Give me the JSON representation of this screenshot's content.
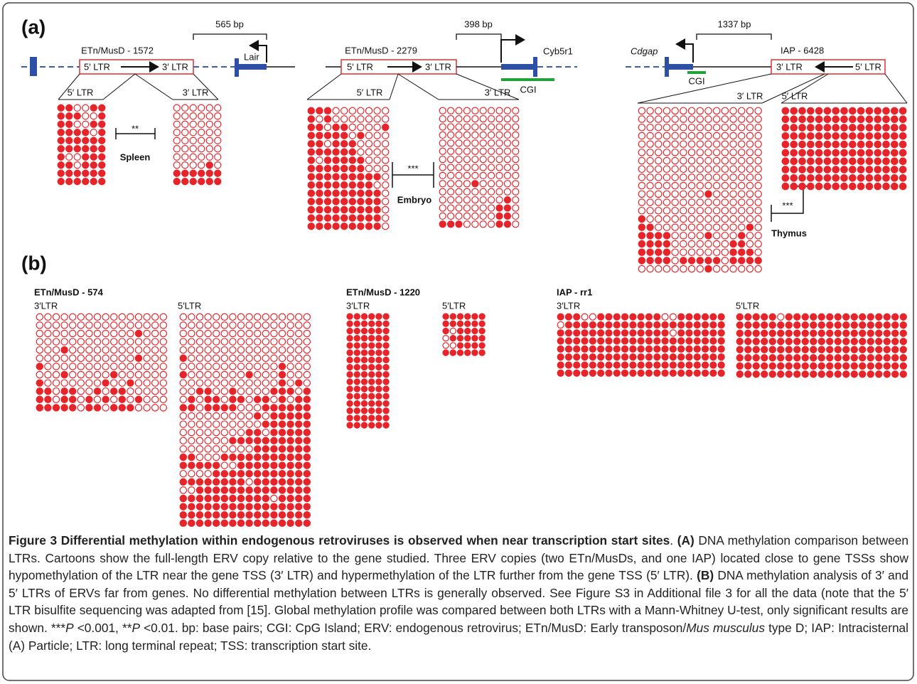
{
  "panel_labels": [
    "(a)",
    "(b)"
  ],
  "diagrams": [
    {
      "title": "ETn/MusD - 1572",
      "distance": "565 bp",
      "ltr_left": "5′ LTR",
      "ltr_right": "3′ LTR",
      "gene": "Lair",
      "grid_left": "5′ LTR",
      "grid_right": "3′ LTR",
      "significance": "**",
      "tissue": "Spleen"
    },
    {
      "title": "ETn/MusD - 2279",
      "distance": "398 bp",
      "ltr_left": "5′ LTR",
      "ltr_right": "3′ LTR",
      "gene": "Cyb5r1",
      "cgi": "CGI",
      "grid_left": "5′ LTR",
      "grid_right": "3′ LTR",
      "significance": "***",
      "tissue": "Embryo"
    },
    {
      "title": "IAP - 6428",
      "distance": "1337 bp",
      "ltr_left": "3′ LTR",
      "ltr_right": "5′ LTR",
      "gene": "Cdgap",
      "cgi": "CGI",
      "grid_left": "3′ LTR",
      "grid_right": "5′ LTR",
      "significance": "***",
      "tissue": "Thymus"
    }
  ],
  "far_elements": [
    {
      "title": "ETn/MusD -  574",
      "grid_left": "3′LTR",
      "grid_right": "5′LTR"
    },
    {
      "title": "ETn/MusD - 1220",
      "grid_left": "3′LTR",
      "grid_right": "5′LTR"
    },
    {
      "title": "IAP - rr1",
      "grid_left": "3′LTR",
      "grid_right": "5′LTR"
    }
  ],
  "grids": [
    {
      "rows": [
        "110011",
        "111001",
        "110011",
        "111101",
        "111111",
        "111111",
        "100111",
        "110111",
        "111111",
        "111111"
      ]
    },
    {
      "rows": [
        "000000",
        "000000",
        "000000",
        "000000",
        "000000",
        "000000",
        "000000",
        "000010",
        "111111",
        "111111"
      ]
    },
    {
      "rows": [
        "1110000000",
        "1010000000",
        "1101100001",
        "1111101000",
        "1101110000",
        "1111110000",
        "1011111000",
        "1111111000",
        "1111111110",
        "1111111100",
        "1111111110",
        "1111111110",
        "1111111110",
        "1111111110",
        "1111111110"
      ]
    },
    {
      "rows": [
        "0000000000",
        "0000000000",
        "0000000000",
        "0000000000",
        "0000000000",
        "0000000000",
        "0000000000",
        "0000000000",
        "0000000000",
        "0000100000",
        "0000000000",
        "0000000010",
        "0000000110",
        "0000000110",
        "1110000110"
      ]
    },
    {
      "rows": [
        "000000000000000",
        "000000000000000",
        "000000000000000",
        "000000000000000",
        "000000000000000",
        "000000000000000",
        "000000000000000",
        "000000000000000",
        "000000000000000",
        "000000000000000",
        "000000001000000",
        "000000000000000",
        "000000000000000",
        "100000000000000",
        "110000000000010",
        "111100001000100",
        "111100000001100",
        "111100000001110",
        "111101111101111",
        "000000001000000"
      ]
    },
    {
      "rows": [
        "111111111111111",
        "111111111111111",
        "111111111111111",
        "111111111111111",
        "111111111111111",
        "111111111111111",
        "111111111111111",
        "111111111111111",
        "111111111111111",
        "111111111111111"
      ]
    },
    {
      "rows": [
        "0000000000000000",
        "0000000000000000",
        "0000000000001000",
        "0000000000000000",
        "0001000000000000",
        "0000000000001000",
        "1000000000000000",
        "0001000001000000",
        "1000000010010000",
        "1101100101100000",
        "1101101010101000",
        "1111101101110000"
      ]
    },
    {
      "rows": [
        "0000000000000000",
        "0000000000000000",
        "0000000000000000",
        "0000000000000000",
        "0000000000000000",
        "1000000000000000",
        "0000000000001000",
        "1000000010001000",
        "0000000000001010",
        "0011001000011101",
        "0101101101101011",
        "1101111000111111",
        "0000000001011111",
        "0000000000111111",
        "0000000011011111",
        "0000001111111111",
        "0000000001111111",
        "1100011111111111",
        "1111100111111111",
        "0000111111111111",
        "1111111101111111",
        "0011111111111111",
        "1111111111101111",
        "1111111111111111",
        "1111111111111111",
        "1111111111111111"
      ]
    },
    {
      "rows": [
        "111111",
        "111111",
        "111111",
        "111111",
        "111111",
        "111111",
        "111111",
        "111111",
        "111111",
        "111111",
        "111111",
        "111111",
        "111111",
        "111111",
        "111111",
        "111111"
      ]
    },
    {
      "rows": [
        "111111",
        "111111",
        "101111",
        "011111",
        "001111",
        "111111"
      ]
    },
    {
      "rows": [
        "111001111111100111111",
        "011111111111111111111",
        "111111111111110111111",
        "111111111111111111111",
        "111111111111111111111",
        "111111111111111111111",
        "111111111111111111111",
        "111111111111111111111"
      ]
    },
    {
      "rows": [
        "111110111111111111111",
        "111111111111111111111",
        "111111111111111111111",
        "111111111111111111111",
        "111111111111111111111",
        "111111111111111111111",
        "111111111111111111111",
        "111111111111111111111"
      ]
    }
  ],
  "caption": {
    "title": "Figure 3 Differential methylation within endogenous retroviruses is observed when near transcription start sites",
    "parts": [
      ". ",
      "(A)",
      " DNA methylation comparison between LTRs. Cartoons show the full-length ERV copy relative to the gene studied. Three ERV copies (two ETn/MusDs, and one IAP) located close to gene TSSs show hypomethylation of the LTR near the gene TSS (3′ LTR) and hypermethylation of the LTR further from the gene TSS (5′ LTR). ",
      "(B)",
      " DNA methylation analysis of 3′ and 5′ LTRs of ERVs far from genes. No differential methylation between LTRs is generally observed. See Figure S3 in Additional file 3 for all the data (note that the 5′ LTR bisulfite sequencing was adapted from [15]. Global methylation profile was compared between both LTRs with a Mann-Whitney U-test, only significant results are shown. ***",
      "P",
      " <0.001, **",
      "P",
      " <0.01. bp: base pairs; CGI: CpG Island; ERV: endogenous retrovirus; ETn/MusD: Early transposon/",
      "Mus musculus",
      " type D; IAP: Intracisternal (A) Particle; LTR: long terminal repeat; TSS: transcription start site."
    ]
  }
}
